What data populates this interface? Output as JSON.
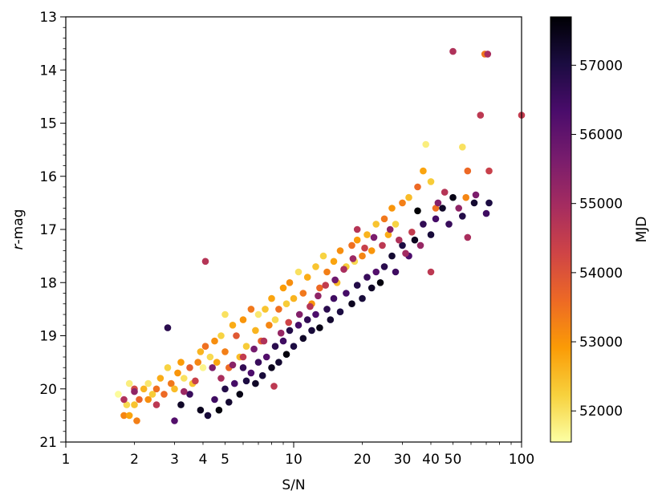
{
  "chart_data": {
    "type": "scatter",
    "xlabel": "S/N",
    "ylabel_italic": "r",
    "ylabel_rest": "-mag",
    "x_scale": "log",
    "xlim": [
      1,
      100
    ],
    "ylim": [
      21,
      13
    ],
    "y_inverted": true,
    "x_tick_labels": [
      {
        "value": 1,
        "label": "1"
      },
      {
        "value": 2,
        "label": "2"
      },
      {
        "value": 3,
        "label": "3"
      },
      {
        "value": 4,
        "label": "4"
      },
      {
        "value": 5,
        "label": "5"
      },
      {
        "value": 10,
        "label": "10"
      },
      {
        "value": 20,
        "label": "20"
      },
      {
        "value": 30,
        "label": "30"
      },
      {
        "value": 40,
        "label": "40"
      },
      {
        "value": 50,
        "label": "50"
      },
      {
        "value": 100,
        "label": "100"
      }
    ],
    "y_ticks": [
      13,
      14,
      15,
      16,
      17,
      18,
      19,
      20,
      21
    ],
    "grid": false,
    "colorbar": {
      "label": "MJD",
      "colormap": "inferno_r",
      "range": [
        51550,
        57700
      ],
      "ticks": [
        52000,
        53000,
        54000,
        55000,
        56000,
        57000
      ],
      "colors": [
        "#fcffa4",
        "#f7d13d",
        "#fb9b06",
        "#ed6925",
        "#cf4446",
        "#a52c60",
        "#781c6d",
        "#4a0c6b",
        "#1b0c41",
        "#000004"
      ]
    },
    "series": [
      {
        "points": [
          [
            1.7,
            20.1,
            51600
          ],
          [
            1.8,
            20.5,
            53200
          ],
          [
            1.85,
            20.3,
            52100
          ],
          [
            1.9,
            20.5,
            52800
          ],
          [
            1.9,
            19.9,
            51800
          ],
          [
            2.0,
            20.0,
            54200
          ],
          [
            2.0,
            20.3,
            52400
          ],
          [
            2.05,
            20.6,
            53300
          ],
          [
            2.1,
            20.2,
            53700
          ],
          [
            2.2,
            20.0,
            52600
          ],
          [
            2.3,
            19.9,
            51900
          ],
          [
            2.3,
            20.2,
            53100
          ],
          [
            2.4,
            20.1,
            52300
          ],
          [
            2.5,
            20.0,
            53500
          ],
          [
            2.6,
            19.8,
            52700
          ],
          [
            2.7,
            20.1,
            53600
          ],
          [
            2.8,
            19.6,
            52200
          ],
          [
            2.9,
            19.9,
            53400
          ],
          [
            3.0,
            20.0,
            52500
          ],
          [
            3.1,
            19.7,
            53000
          ],
          [
            3.2,
            19.5,
            52900
          ],
          [
            3.3,
            19.8,
            52000
          ],
          [
            3.5,
            19.6,
            53800
          ],
          [
            3.6,
            19.9,
            52400
          ],
          [
            3.8,
            19.5,
            53200
          ],
          [
            3.9,
            19.3,
            52600
          ],
          [
            4.0,
            19.6,
            51700
          ],
          [
            4.1,
            19.2,
            53500
          ],
          [
            4.3,
            19.4,
            52100
          ],
          [
            4.5,
            19.1,
            53100
          ],
          [
            4.6,
            19.5,
            52800
          ],
          [
            4.8,
            19.0,
            52200
          ],
          [
            5.0,
            19.3,
            53300
          ],
          [
            5.0,
            18.6,
            52000
          ],
          [
            5.2,
            19.6,
            53600
          ],
          [
            5.4,
            18.8,
            52700
          ],
          [
            5.6,
            19.0,
            53900
          ],
          [
            5.8,
            19.4,
            52500
          ],
          [
            6.0,
            18.7,
            53000
          ],
          [
            6.2,
            19.2,
            52300
          ],
          [
            6.5,
            18.5,
            53400
          ],
          [
            6.8,
            18.9,
            52600
          ],
          [
            7.0,
            18.6,
            51900
          ],
          [
            7.2,
            19.1,
            53700
          ],
          [
            7.5,
            18.5,
            52400
          ],
          [
            7.8,
            18.8,
            53200
          ],
          [
            8.0,
            18.3,
            52800
          ],
          [
            8.3,
            18.7,
            52100
          ],
          [
            8.6,
            18.5,
            53500
          ],
          [
            9.0,
            18.1,
            52900
          ],
          [
            9.3,
            18.4,
            52300
          ],
          [
            9.6,
            18.0,
            53100
          ],
          [
            10.0,
            18.3,
            52600
          ],
          [
            10.5,
            17.8,
            52000
          ],
          [
            11.0,
            18.2,
            53400
          ],
          [
            11.5,
            17.9,
            52700
          ],
          [
            12.0,
            18.4,
            53000
          ],
          [
            12.5,
            17.7,
            52400
          ],
          [
            13.0,
            18.1,
            53600
          ],
          [
            13.5,
            17.5,
            52200
          ],
          [
            14.0,
            17.8,
            53300
          ],
          [
            15.0,
            17.6,
            52800
          ],
          [
            15.5,
            18.0,
            52500
          ],
          [
            16.0,
            17.4,
            53100
          ],
          [
            17.0,
            17.7,
            52300
          ],
          [
            18.0,
            17.3,
            53500
          ],
          [
            18.5,
            17.6,
            52100
          ],
          [
            19.0,
            17.2,
            52900
          ],
          [
            20.0,
            17.5,
            53200
          ],
          [
            21.0,
            17.1,
            52600
          ],
          [
            22.0,
            17.4,
            53000
          ],
          [
            23.0,
            16.9,
            52400
          ],
          [
            25.0,
            16.8,
            53400
          ],
          [
            26.0,
            17.1,
            52700
          ],
          [
            27.0,
            16.6,
            53000
          ],
          [
            28.0,
            16.9,
            52200
          ],
          [
            30.0,
            16.5,
            53300
          ],
          [
            32.0,
            16.4,
            52500
          ],
          [
            35.0,
            16.2,
            53600
          ],
          [
            37.0,
            15.9,
            52800
          ],
          [
            38.0,
            15.4,
            51800
          ],
          [
            40.0,
            16.1,
            52300
          ],
          [
            42.0,
            16.6,
            53500
          ],
          [
            55.0,
            15.45,
            52000
          ],
          [
            57.0,
            16.4,
            53200
          ],
          [
            58.0,
            15.9,
            53600
          ],
          [
            69.0,
            13.7,
            53400
          ],
          [
            2.8,
            18.85,
            56800
          ],
          [
            3.0,
            20.6,
            56200
          ],
          [
            3.2,
            20.3,
            57300
          ],
          [
            3.5,
            20.1,
            56600
          ],
          [
            3.9,
            20.4,
            57400
          ],
          [
            4.2,
            20.5,
            57100
          ],
          [
            4.5,
            20.2,
            56500
          ],
          [
            4.7,
            20.4,
            57600
          ],
          [
            5.0,
            20.0,
            56900
          ],
          [
            5.2,
            20.25,
            57200
          ],
          [
            5.5,
            19.9,
            56400
          ],
          [
            5.8,
            20.1,
            57500
          ],
          [
            6.0,
            19.6,
            56700
          ],
          [
            6.2,
            19.85,
            57000
          ],
          [
            6.5,
            19.7,
            56300
          ],
          [
            6.8,
            19.9,
            57300
          ],
          [
            7.0,
            19.5,
            56600
          ],
          [
            7.3,
            19.75,
            57100
          ],
          [
            7.6,
            19.4,
            56200
          ],
          [
            8.0,
            19.6,
            57400
          ],
          [
            8.3,
            19.2,
            56800
          ],
          [
            8.6,
            19.5,
            57200
          ],
          [
            9.0,
            19.1,
            56500
          ],
          [
            9.3,
            19.35,
            57600
          ],
          [
            9.6,
            18.9,
            56900
          ],
          [
            10.0,
            19.2,
            57000
          ],
          [
            10.5,
            18.8,
            56400
          ],
          [
            11.0,
            19.05,
            57300
          ],
          [
            11.5,
            18.7,
            56700
          ],
          [
            12.0,
            18.9,
            57100
          ],
          [
            12.5,
            18.6,
            56300
          ],
          [
            13.0,
            18.85,
            57500
          ],
          [
            14.0,
            18.5,
            56800
          ],
          [
            14.5,
            18.7,
            57200
          ],
          [
            15.0,
            18.3,
            56500
          ],
          [
            16.0,
            18.55,
            57000
          ],
          [
            17.0,
            18.2,
            56400
          ],
          [
            18.0,
            18.4,
            57400
          ],
          [
            19.0,
            18.05,
            56900
          ],
          [
            20.0,
            18.3,
            57100
          ],
          [
            21.0,
            17.9,
            56600
          ],
          [
            22.0,
            18.1,
            57300
          ],
          [
            23.0,
            17.8,
            56200
          ],
          [
            24.0,
            18.0,
            57600
          ],
          [
            25.0,
            17.7,
            56800
          ],
          [
            27.0,
            17.5,
            57200
          ],
          [
            28.0,
            17.8,
            56500
          ],
          [
            30.0,
            17.3,
            57000
          ],
          [
            32.0,
            17.5,
            56300
          ],
          [
            34.0,
            17.2,
            57400
          ],
          [
            35.0,
            16.65,
            57700
          ],
          [
            37.0,
            16.9,
            56700
          ],
          [
            40.0,
            17.1,
            57100
          ],
          [
            42.0,
            16.8,
            56400
          ],
          [
            45.0,
            16.6,
            57300
          ],
          [
            48.0,
            16.9,
            56600
          ],
          [
            50.0,
            16.4,
            57500
          ],
          [
            55.0,
            16.75,
            56900
          ],
          [
            62.0,
            16.5,
            57200
          ],
          [
            70.0,
            16.7,
            56500
          ],
          [
            72.0,
            16.5,
            57000
          ],
          [
            1.8,
            20.2,
            54800
          ],
          [
            2.0,
            20.05,
            55300
          ],
          [
            2.5,
            20.3,
            54600
          ],
          [
            3.3,
            20.05,
            55100
          ],
          [
            3.7,
            19.85,
            54400
          ],
          [
            4.1,
            17.6,
            54700
          ],
          [
            4.4,
            19.6,
            55600
          ],
          [
            4.8,
            19.8,
            54900
          ],
          [
            5.4,
            19.55,
            55400
          ],
          [
            6.0,
            19.4,
            54500
          ],
          [
            6.7,
            19.25,
            55700
          ],
          [
            7.4,
            19.1,
            54800
          ],
          [
            8.2,
            19.95,
            54600
          ],
          [
            8.8,
            18.95,
            55200
          ],
          [
            9.5,
            18.75,
            54300
          ],
          [
            10.6,
            18.6,
            55500
          ],
          [
            11.8,
            18.45,
            54700
          ],
          [
            12.8,
            18.25,
            55300
          ],
          [
            13.8,
            18.05,
            54500
          ],
          [
            15.2,
            17.95,
            55800
          ],
          [
            16.6,
            17.75,
            54900
          ],
          [
            18.2,
            17.55,
            55100
          ],
          [
            19.0,
            17.0,
            54700
          ],
          [
            20.5,
            17.35,
            54400
          ],
          [
            22.5,
            17.15,
            55600
          ],
          [
            24.5,
            17.3,
            54600
          ],
          [
            26.5,
            17.0,
            55400
          ],
          [
            29.0,
            17.2,
            54800
          ],
          [
            31.0,
            17.45,
            55000
          ],
          [
            33.0,
            17.05,
            54500
          ],
          [
            36.0,
            17.3,
            55200
          ],
          [
            40.0,
            17.8,
            54600
          ],
          [
            43.0,
            16.5,
            55500
          ],
          [
            46.0,
            16.3,
            54700
          ],
          [
            50.0,
            13.65,
            54800
          ],
          [
            53.0,
            16.6,
            55300
          ],
          [
            58.0,
            17.15,
            54900
          ],
          [
            63.0,
            16.35,
            55600
          ],
          [
            66.0,
            14.85,
            54600
          ],
          [
            72.0,
            15.9,
            54400
          ],
          [
            100.0,
            14.85,
            54500
          ],
          [
            71.0,
            13.7,
            54900
          ]
        ]
      }
    ]
  }
}
